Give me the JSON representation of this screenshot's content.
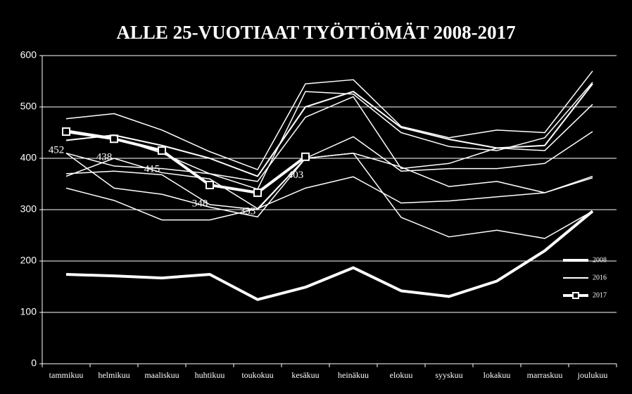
{
  "chart_data": {
    "type": "line",
    "title": "ALLE 25-VUOTIAAT TYÖTTÖMÄT 2008-2017",
    "categories": [
      "tammikuu",
      "helmikuu",
      "maaliskuu",
      "huhtikuu",
      "toukokuu",
      "kesäkuu",
      "heinäkuu",
      "elokuu",
      "syyskuu",
      "lokakuu",
      "marraskuu",
      "joulukuu"
    ],
    "ylim": [
      0,
      600
    ],
    "yticks": [
      0,
      100,
      200,
      300,
      400,
      500,
      600
    ],
    "grid": true,
    "legend": "right",
    "series": [
      {
        "name": "2008",
        "color": "#ffffff",
        "values": [
          174,
          171,
          167,
          174,
          125,
          149,
          187,
          142,
          131,
          161,
          220,
          297
        ]
      },
      {
        "name": "2016",
        "color": "#ffffff",
        "values": [
          435,
          445,
          425,
          400,
          365,
          500,
          530,
          460,
          437,
          420,
          425,
          545
        ]
      },
      {
        "name": "2017",
        "color": "#ffffff",
        "values": [
          452,
          438,
          415,
          348,
          333,
          403,
          null,
          null,
          null,
          null,
          null,
          null
        ]
      },
      {
        "color": "#ffffff",
        "values": [
          455,
          440,
          410,
          370,
          340,
          530,
          525,
          450,
          423,
          415,
          440,
          548
        ]
      },
      {
        "color": "#ffffff",
        "values": [
          477,
          487,
          455,
          413,
          378,
          545,
          553,
          462,
          440,
          455,
          450,
          570
        ]
      },
      {
        "color": "#ffffff",
        "values": [
          410,
          385,
          380,
          370,
          355,
          480,
          520,
          380,
          390,
          420,
          415,
          505
        ]
      },
      {
        "color": "#ffffff",
        "values": [
          370,
          375,
          368,
          310,
          300,
          400,
          442,
          375,
          380,
          380,
          390,
          452
        ]
      },
      {
        "color": "#ffffff",
        "values": [
          365,
          400,
          372,
          360,
          302,
          400,
          410,
          383,
          345,
          355,
          333,
          365
        ]
      },
      {
        "color": "#ffffff",
        "values": [
          342,
          318,
          280,
          280,
          302,
          342,
          364,
          313,
          317,
          325,
          333,
          362
        ]
      },
      {
        "color": "#ffffff",
        "values": [
          410,
          342,
          330,
          305,
          286,
          400,
          410,
          285,
          247,
          260,
          244,
          297
        ]
      }
    ]
  }
}
